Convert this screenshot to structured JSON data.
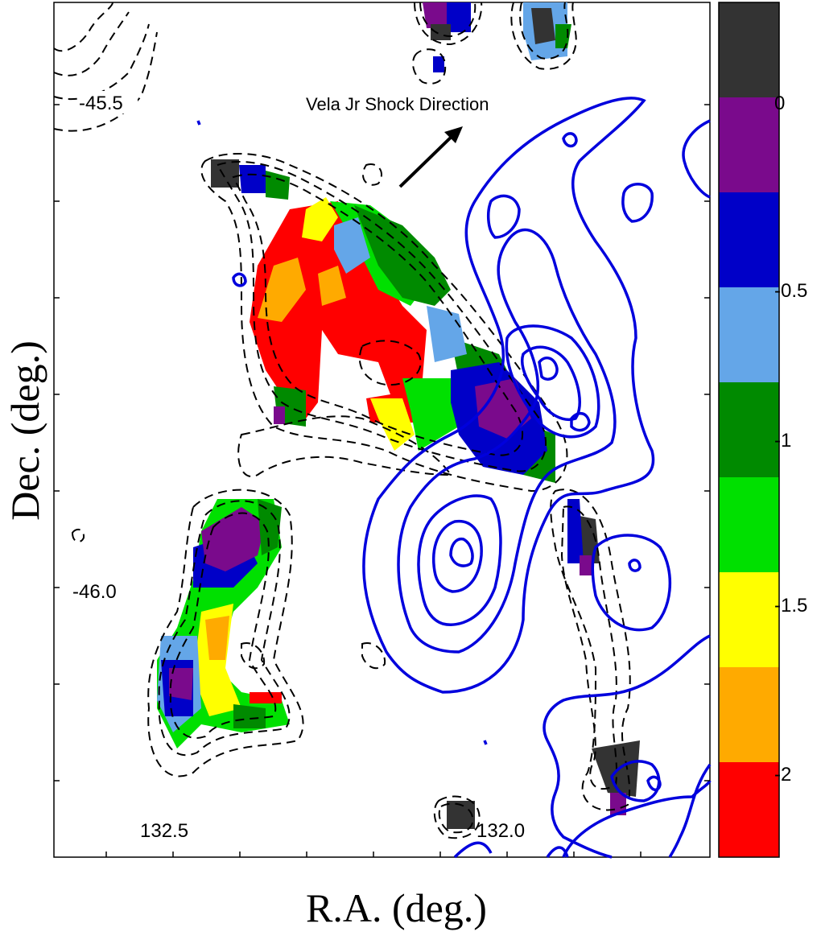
{
  "chart_data": {
    "type": "heatmap",
    "title": "",
    "xlabel": "R.A. (deg.)",
    "ylabel": "Dec. (deg.)",
    "x_tick_labels": [
      "132.5",
      "132.0"
    ],
    "y_tick_labels": [
      "-45.5",
      "-46.0"
    ],
    "annotation": "Vela Jr Shock Direction",
    "colorbar": {
      "tick_labels": [
        "0",
        "-0.5",
        "-1",
        "-1.5",
        "-2"
      ],
      "bins_top_to_bottom": [
        {
          "color": "#333333"
        },
        {
          "color": "#7a0a8c"
        },
        {
          "color": "#0000c8"
        },
        {
          "color": "#64a6e8"
        },
        {
          "color": "#008a00"
        },
        {
          "color": "#00e000"
        },
        {
          "color": "#ffff00"
        },
        {
          "color": "#ffaa00"
        },
        {
          "color": "#ff0000"
        }
      ]
    },
    "overlays": {
      "dashed_contours_color": "#000000",
      "solid_contours_color": "#0000dd"
    }
  }
}
